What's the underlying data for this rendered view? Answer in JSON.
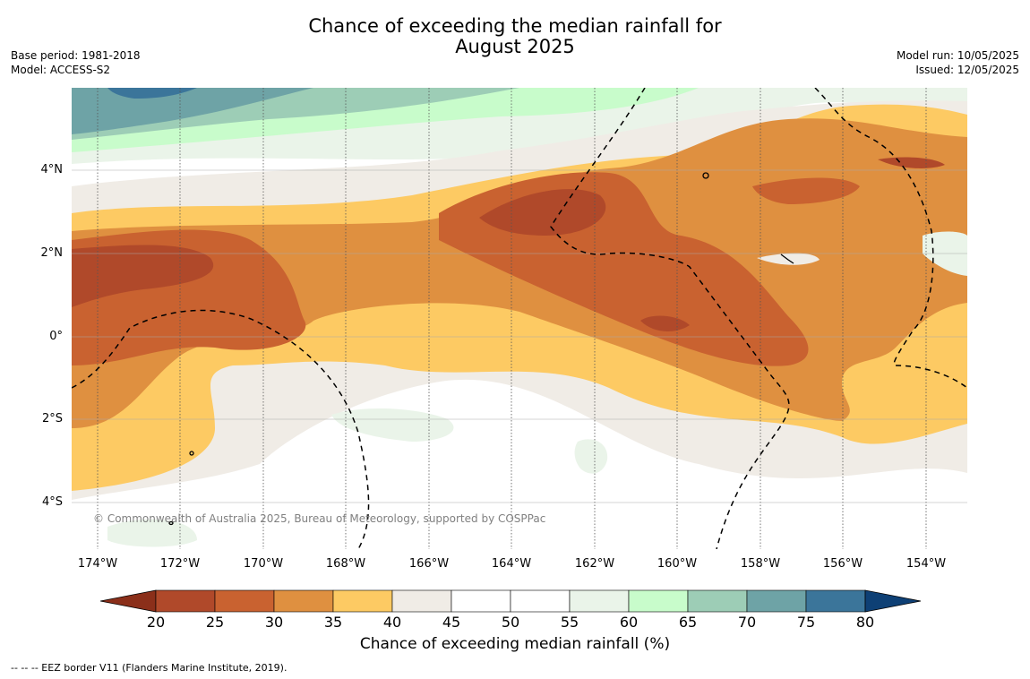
{
  "title": {
    "line1": "Chance of exceeding the median rainfall for",
    "line2": "August 2025"
  },
  "meta": {
    "base_period": "Base period: 1981-2018",
    "model": "Model: ACCESS-S2",
    "model_run": "Model run: 10/05/2025",
    "issued": "Issued: 12/05/2025"
  },
  "map": {
    "lat_labels": [
      "4°N",
      "2°N",
      "0°",
      "2°S",
      "4°S"
    ],
    "lon_labels": [
      "174°W",
      "172°W",
      "170°W",
      "168°W",
      "166°W",
      "164°W",
      "162°W",
      "160°W",
      "158°W",
      "156°W",
      "154°W"
    ],
    "copyright": "© Commonwealth of Australia 2025, Bureau of Meteorology, supported by COSPPac",
    "eez_line_style": "dashed"
  },
  "colorbar": {
    "ticks": [
      "20",
      "25",
      "30",
      "35",
      "40",
      "45",
      "50",
      "55",
      "60",
      "65",
      "70",
      "75",
      "80"
    ],
    "colors": [
      "#8b2f1a",
      "#b0492a",
      "#c96230",
      "#df9040",
      "#fdca63",
      "#f0ece6",
      "#ffffff",
      "#ffffff",
      "#eaf4e9",
      "#c8fccb",
      "#9dcdb6",
      "#6ea3a6",
      "#3b759a",
      "#0e4075"
    ],
    "title": "Chance of exceeding median rainfall (%)"
  },
  "legend": {
    "eez": "--  --  -- EEZ border V11 (Flanders Marine Institute, 2019)."
  }
}
